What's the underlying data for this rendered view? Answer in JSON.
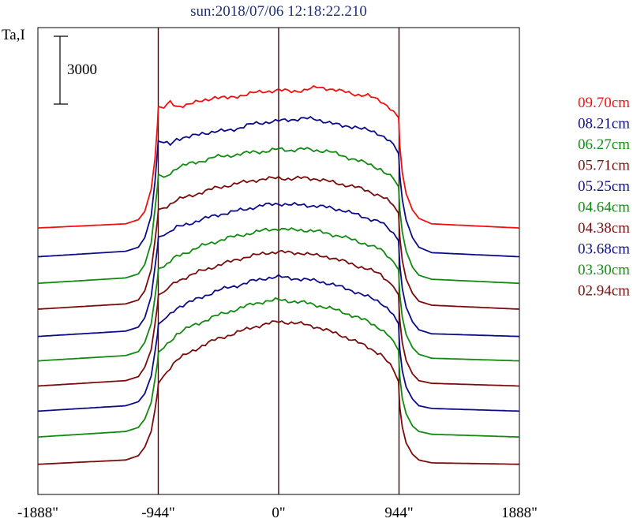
{
  "chart_data": {
    "type": "line",
    "title": "sun:2018/07/06 12:18:22.210",
    "ylabel": "Ta,I",
    "scale_bar_label": "3000",
    "xlim": [
      -1888,
      1888
    ],
    "x_ticks": [
      {
        "value": -1888,
        "label": "-1888\""
      },
      {
        "value": -944,
        "label": "-944\""
      },
      {
        "value": 0,
        "label": "0\""
      },
      {
        "value": 944,
        "label": "944\""
      },
      {
        "value": 1888,
        "label": "1888\""
      }
    ],
    "vertical_markers": [
      -944,
      0,
      944
    ],
    "profile_x": [
      -1888,
      -1200,
      -1100,
      -1050,
      -1000,
      -970,
      -950,
      -944,
      -940,
      -900,
      -850,
      -800,
      -700,
      -600,
      -500,
      -400,
      -300,
      -200,
      -100,
      0,
      100,
      200,
      300,
      400,
      500,
      600,
      700,
      800,
      850,
      900,
      940,
      944,
      950,
      970,
      1000,
      1050,
      1100,
      1200,
      1888
    ],
    "series": [
      {
        "name": "09.70cm",
        "color": "#ee1111",
        "baseline": 3710,
        "peak": 5630,
        "profile": [
          0,
          0.03,
          0.06,
          0.12,
          0.28,
          0.5,
          0.75,
          0.87,
          0.88,
          0.87,
          0.91,
          0.88,
          0.9,
          0.92,
          0.95,
          0.94,
          0.96,
          0.98,
          0.99,
          1.0,
          0.99,
          1.0,
          1.02,
          1.01,
          0.99,
          0.97,
          0.96,
          0.92,
          0.89,
          0.85,
          0.8,
          0.74,
          0.6,
          0.4,
          0.25,
          0.13,
          0.07,
          0.03,
          0
        ]
      },
      {
        "name": "08.21cm",
        "color": "#0c0c88",
        "baseline": 3310,
        "peak": 5200,
        "profile": [
          0,
          0.04,
          0.07,
          0.14,
          0.3,
          0.55,
          0.78,
          0.86,
          0.85,
          0.84,
          0.83,
          0.87,
          0.88,
          0.91,
          0.92,
          0.93,
          0.95,
          0.98,
          0.99,
          1.0,
          1.01,
          1.02,
          1.01,
          0.99,
          0.96,
          0.96,
          0.93,
          0.9,
          0.87,
          0.83,
          0.76,
          0.71,
          0.6,
          0.42,
          0.27,
          0.14,
          0.07,
          0.03,
          0
        ]
      },
      {
        "name": "06.27cm",
        "color": "#108a10",
        "baseline": 2940,
        "peak": 4810,
        "profile": [
          0,
          0.04,
          0.07,
          0.14,
          0.3,
          0.55,
          0.72,
          0.8,
          0.81,
          0.79,
          0.82,
          0.86,
          0.89,
          0.91,
          0.94,
          0.95,
          0.96,
          0.98,
          0.98,
          1.0,
          0.99,
          1.0,
          0.99,
          0.98,
          0.95,
          0.92,
          0.89,
          0.85,
          0.81,
          0.78,
          0.72,
          0.66,
          0.55,
          0.38,
          0.24,
          0.12,
          0.06,
          0.03,
          0
        ]
      },
      {
        "name": "05.71cm",
        "color": "#7a0c0c",
        "baseline": 2580,
        "peak": 4410,
        "profile": [
          0,
          0.04,
          0.07,
          0.14,
          0.3,
          0.52,
          0.68,
          0.75,
          0.76,
          0.77,
          0.8,
          0.83,
          0.86,
          0.89,
          0.92,
          0.94,
          0.96,
          0.98,
          0.99,
          1.0,
          0.99,
          1.0,
          0.99,
          0.97,
          0.95,
          0.93,
          0.9,
          0.86,
          0.83,
          0.79,
          0.73,
          0.66,
          0.55,
          0.37,
          0.23,
          0.12,
          0.06,
          0.03,
          0
        ]
      },
      {
        "name": "05.25cm",
        "color": "#0c0c88",
        "baseline": 2200,
        "peak": 4050,
        "profile": [
          0,
          0.04,
          0.07,
          0.14,
          0.3,
          0.52,
          0.67,
          0.74,
          0.75,
          0.76,
          0.79,
          0.82,
          0.85,
          0.88,
          0.91,
          0.93,
          0.95,
          0.97,
          0.99,
          1.0,
          0.99,
          0.99,
          0.98,
          0.97,
          0.95,
          0.92,
          0.89,
          0.86,
          0.82,
          0.78,
          0.72,
          0.65,
          0.54,
          0.36,
          0.22,
          0.11,
          0.05,
          0.02,
          0
        ]
      },
      {
        "name": "04.64cm",
        "color": "#108a10",
        "baseline": 1860,
        "peak": 3700,
        "profile": [
          0,
          0.04,
          0.07,
          0.14,
          0.28,
          0.48,
          0.62,
          0.69,
          0.7,
          0.71,
          0.75,
          0.79,
          0.83,
          0.87,
          0.9,
          0.93,
          0.95,
          0.97,
          0.99,
          1.0,
          0.99,
          0.99,
          0.98,
          0.96,
          0.94,
          0.91,
          0.88,
          0.84,
          0.8,
          0.75,
          0.69,
          0.62,
          0.5,
          0.33,
          0.2,
          0.1,
          0.05,
          0.02,
          0
        ]
      },
      {
        "name": "04.38cm",
        "color": "#7a0c0c",
        "baseline": 1510,
        "peak": 3380,
        "profile": [
          0,
          0.04,
          0.07,
          0.14,
          0.27,
          0.46,
          0.6,
          0.67,
          0.68,
          0.7,
          0.74,
          0.78,
          0.82,
          0.86,
          0.89,
          0.92,
          0.95,
          0.97,
          0.99,
          1.0,
          0.99,
          0.99,
          0.97,
          0.96,
          0.93,
          0.9,
          0.87,
          0.83,
          0.79,
          0.74,
          0.68,
          0.6,
          0.49,
          0.32,
          0.19,
          0.09,
          0.04,
          0.02,
          0
        ]
      },
      {
        "name": "03.68cm",
        "color": "#0c0c88",
        "baseline": 1160,
        "peak": 3030,
        "profile": [
          0,
          0.04,
          0.07,
          0.13,
          0.26,
          0.44,
          0.57,
          0.64,
          0.65,
          0.68,
          0.72,
          0.77,
          0.81,
          0.85,
          0.89,
          0.92,
          0.94,
          0.97,
          0.99,
          1.0,
          0.99,
          0.98,
          0.97,
          0.95,
          0.92,
          0.89,
          0.85,
          0.81,
          0.77,
          0.72,
          0.65,
          0.57,
          0.46,
          0.3,
          0.18,
          0.09,
          0.04,
          0.02,
          0
        ]
      },
      {
        "name": "03.30cm",
        "color": "#108a10",
        "baseline": 800,
        "peak": 2710,
        "profile": [
          0,
          0.04,
          0.07,
          0.13,
          0.25,
          0.42,
          0.54,
          0.61,
          0.62,
          0.65,
          0.7,
          0.75,
          0.8,
          0.84,
          0.88,
          0.91,
          0.94,
          0.97,
          0.99,
          1.0,
          0.99,
          0.98,
          0.96,
          0.94,
          0.91,
          0.88,
          0.84,
          0.79,
          0.75,
          0.7,
          0.63,
          0.55,
          0.44,
          0.28,
          0.17,
          0.08,
          0.04,
          0.02,
          0
        ]
      },
      {
        "name": "02.94cm",
        "color": "#7a0c0c",
        "baseline": 420,
        "peak": 2410,
        "profile": [
          0,
          0.03,
          0.06,
          0.12,
          0.23,
          0.38,
          0.5,
          0.56,
          0.57,
          0.62,
          0.68,
          0.73,
          0.78,
          0.83,
          0.87,
          0.9,
          0.93,
          0.96,
          0.98,
          1.0,
          0.99,
          0.98,
          0.96,
          0.93,
          0.9,
          0.86,
          0.82,
          0.77,
          0.72,
          0.66,
          0.58,
          0.5,
          0.4,
          0.26,
          0.15,
          0.07,
          0.03,
          0.01,
          0
        ]
      }
    ],
    "ylim": [
      0,
      6500
    ]
  }
}
